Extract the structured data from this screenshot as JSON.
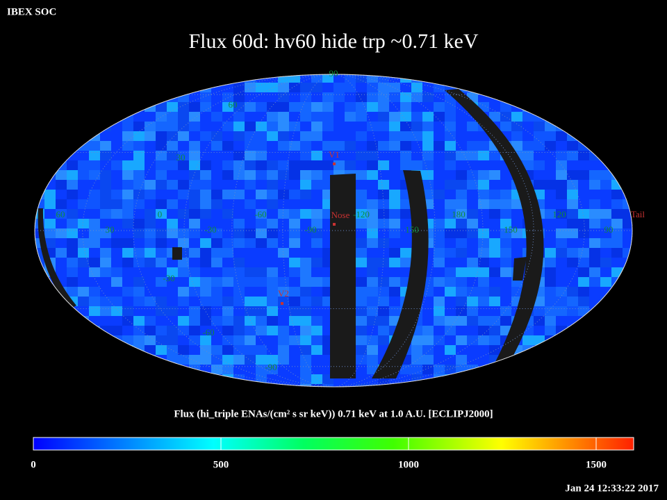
{
  "header": {
    "source": "IBEX SOC",
    "title": "Flux   60d: hv60 hide trp ~0.71 keV",
    "timestamp": "Jan 24 12:33:22 2017"
  },
  "map": {
    "latitude_labels": [
      "90",
      "60",
      "30",
      "-30",
      "-60",
      "-90"
    ],
    "longitude_labels": [
      "60",
      "30",
      "0",
      "-30",
      "-60",
      "-90",
      "-120",
      "150",
      "180",
      "150",
      "120",
      "90"
    ],
    "markers": [
      "V1",
      "Nose",
      "V2",
      "Tail"
    ]
  },
  "chart_data": {
    "type": "colorbar",
    "title": "Flux (hi_triple ENAs/(cm² s sr keV))  0.71 keV at 1.0 A.U. [ECLIPJ2000]",
    "xlim": [
      0,
      1600
    ],
    "xticks": [
      0,
      500,
      1000,
      1500
    ]
  }
}
